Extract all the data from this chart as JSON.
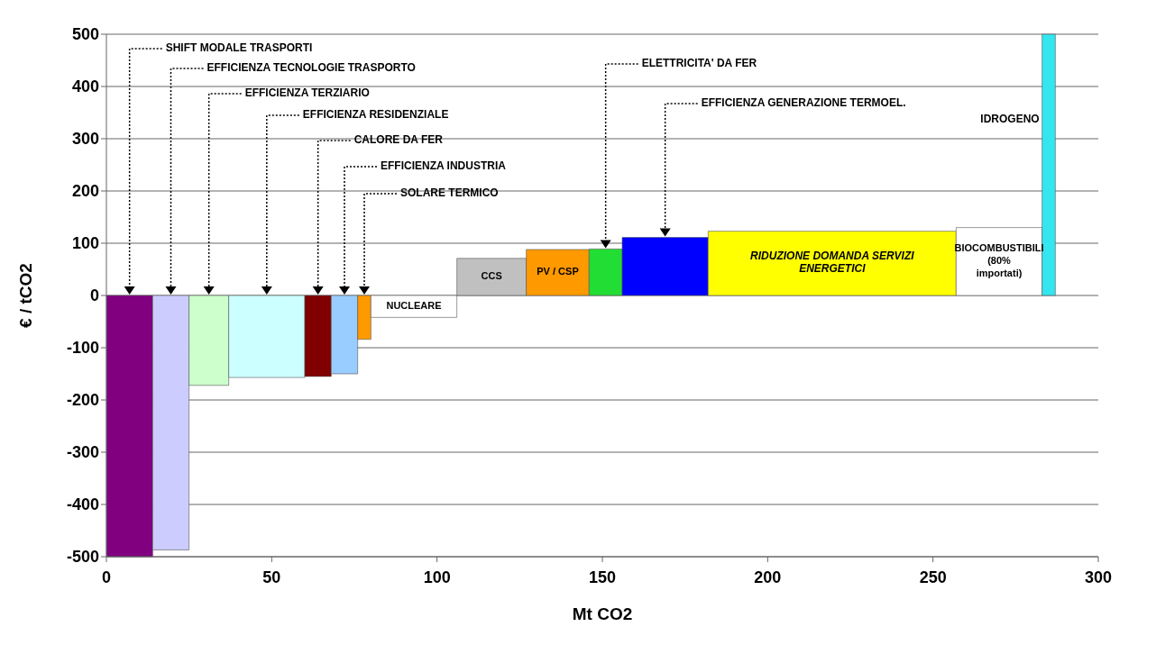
{
  "chart_data": {
    "type": "histogram",
    "xlabel": "Mt CO2",
    "ylabel": "€ / tCO2",
    "bins": [
      0,
      14,
      25,
      37,
      60,
      68,
      76,
      80,
      106,
      127,
      146,
      156,
      182,
      257,
      283,
      287
    ],
    "values": [
      -500,
      -487,
      -172,
      -157,
      -155,
      -150,
      -84,
      -42,
      71,
      88,
      89,
      111,
      123,
      130,
      500
    ],
    "colors": [
      "#800080",
      "#ccccff",
      "#ccffcc",
      "#ccffff",
      "#800000",
      "#99ccff",
      "#ff9900",
      "#ffffff",
      "#c0c0c0",
      "#ff9900",
      "#22dd33",
      "#0000ff",
      "#ffff00",
      "#ffffff",
      "#33e6f0"
    ],
    "xlim": [
      0,
      300
    ],
    "xticks": [
      0,
      50,
      100,
      150,
      200,
      250,
      300
    ],
    "ylim": [
      -500,
      500
    ],
    "yticks": [
      -500,
      -400,
      -300,
      -200,
      -100,
      0,
      100,
      200,
      300,
      400,
      500
    ],
    "grid": "y",
    "annotations": [
      "SHIFT MODALE TRASPORTI",
      "EFFICIENZA TECNOLOGIE TRASPORTO",
      "EFFICIENZA TERZIARIO",
      "EFFICIENZA RESIDENZIALE",
      "CALORE DA FER",
      "EFFICIENZA INDUSTRIA",
      "SOLARE TERMICO",
      "ELETTRICITA' DA FER",
      "EFFICIENZA GENERAZIONE TERMOEL.",
      "NUCLEARE",
      "CCS",
      "PV / CSP",
      "RIDUZIONE DOMANDA SERVIZI ENERGETICI",
      "BIOCOMBUSTIBILI (80% importati)",
      "IDROGENO"
    ]
  }
}
